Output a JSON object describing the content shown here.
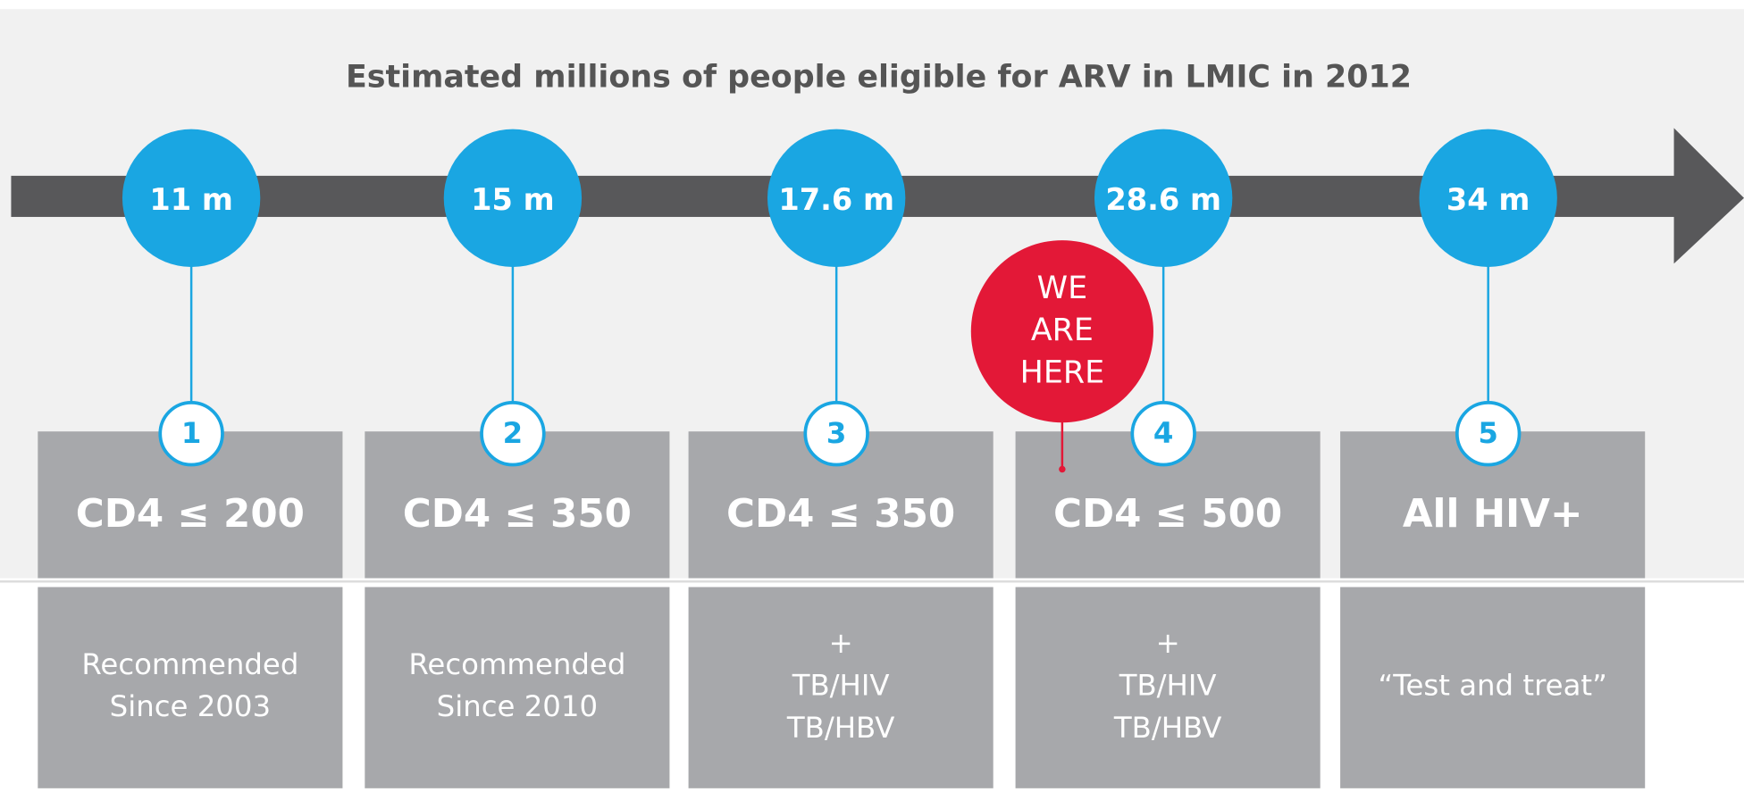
{
  "title": "Estimated millions of people eligible for ARV in LMIC in 2012",
  "stages": [
    {
      "value": "11 m",
      "number": "1",
      "criterion": "CD4 ≤ 200",
      "note": [
        "Recommended",
        "Since 2003"
      ]
    },
    {
      "value": "15 m",
      "number": "2",
      "criterion": "CD4 ≤ 350",
      "note": [
        "Recommended",
        "Since 2010"
      ]
    },
    {
      "value": "17.6 m",
      "number": "3",
      "criterion": "CD4 ≤ 350",
      "note": [
        "+",
        "TB/HIV",
        "TB/HBV"
      ]
    },
    {
      "value": "28.6 m",
      "number": "4",
      "criterion": "CD4 ≤ 500",
      "note": [
        "+",
        "TB/HIV",
        "TB/HBV"
      ]
    },
    {
      "value": "34 m",
      "number": "5",
      "criterion": "All HIV+",
      "note": [
        "“Test and treat”"
      ]
    }
  ],
  "callout": {
    "lines": [
      "WE",
      "ARE",
      "HERE"
    ]
  }
}
